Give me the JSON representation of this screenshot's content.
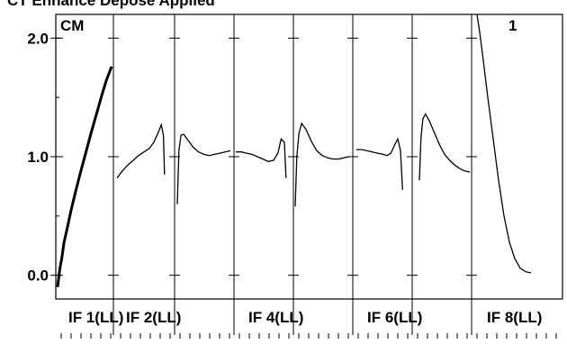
{
  "chart_data": {
    "type": "line",
    "caption": "CT Enhance Depose Applied",
    "corner_left": "CM",
    "corner_right": "1",
    "ylim": [
      -0.2,
      2.2
    ],
    "yticks": [
      "0.0",
      "1.0",
      "2.0"
    ],
    "ytick_values": [
      0.0,
      1.0,
      2.0
    ],
    "panels": [
      "IF 1(LL)",
      "IF 2(LL)",
      "IF 4(LL)",
      "IF 6(LL)",
      "IF 8(LL)"
    ],
    "line_color": "#000000",
    "series": [
      {
        "segment": 1,
        "x": [
          0.0,
          0.04,
          0.08,
          0.12,
          0.18,
          0.25,
          0.33,
          0.42,
          0.52,
          0.62,
          0.72,
          0.82,
          0.9,
          1.0
        ],
        "y": [
          -0.1,
          0.05,
          0.15,
          0.28,
          0.4,
          0.55,
          0.7,
          0.86,
          1.03,
          1.2,
          1.36,
          1.52,
          1.64,
          1.76
        ]
      },
      {
        "segment": 2,
        "x": [
          0.0,
          0.1,
          0.2,
          0.3,
          0.4,
          0.5,
          0.6,
          0.68,
          0.76,
          0.82,
          0.86,
          0.88
        ],
        "y": [
          0.82,
          0.88,
          0.93,
          0.97,
          1.01,
          1.04,
          1.07,
          1.12,
          1.2,
          1.27,
          1.18,
          0.85
        ]
      },
      {
        "segment": 3,
        "x": [
          0.0,
          0.03,
          0.07,
          0.12,
          0.2,
          0.3,
          0.4,
          0.5,
          0.6,
          0.7,
          0.8,
          0.9,
          1.0
        ],
        "y": [
          0.6,
          1.05,
          1.18,
          1.19,
          1.14,
          1.08,
          1.04,
          1.02,
          1.01,
          1.02,
          1.03,
          1.04,
          1.05
        ]
      },
      {
        "segment": 4,
        "x": [
          0.0,
          0.1,
          0.2,
          0.3,
          0.4,
          0.5,
          0.6,
          0.7,
          0.78,
          0.84,
          0.9,
          0.93
        ],
        "y": [
          1.04,
          1.04,
          1.03,
          1.02,
          1.0,
          0.98,
          0.96,
          0.97,
          1.03,
          1.15,
          1.12,
          0.82
        ]
      },
      {
        "segment": 5,
        "x": [
          0.0,
          0.03,
          0.07,
          0.12,
          0.2,
          0.3,
          0.4,
          0.5,
          0.6,
          0.7,
          0.8,
          0.9,
          1.0
        ],
        "y": [
          0.58,
          1.0,
          1.2,
          1.28,
          1.23,
          1.13,
          1.05,
          1.01,
          0.99,
          0.98,
          0.98,
          0.99,
          1.0
        ]
      },
      {
        "segment": 6,
        "x": [
          0.0,
          0.1,
          0.2,
          0.3,
          0.4,
          0.5,
          0.58,
          0.65,
          0.72,
          0.78,
          0.83,
          0.87
        ],
        "y": [
          1.06,
          1.06,
          1.05,
          1.04,
          1.03,
          1.02,
          1.01,
          1.03,
          1.1,
          1.15,
          1.05,
          0.72
        ]
      },
      {
        "segment": 7,
        "x": [
          0.0,
          0.03,
          0.07,
          0.12,
          0.2,
          0.3,
          0.4,
          0.5,
          0.6,
          0.7,
          0.8,
          0.9,
          1.0
        ],
        "y": [
          0.8,
          1.15,
          1.32,
          1.36,
          1.3,
          1.2,
          1.1,
          1.02,
          0.97,
          0.93,
          0.9,
          0.88,
          0.87
        ]
      },
      {
        "segment": 8,
        "x": [
          0.0,
          0.05,
          0.12,
          0.2,
          0.3,
          0.4,
          0.5,
          0.6,
          0.7,
          0.8,
          0.9,
          1.0
        ],
        "y": [
          2.2,
          2.05,
          1.8,
          1.5,
          1.15,
          0.8,
          0.5,
          0.28,
          0.14,
          0.06,
          0.03,
          0.02
        ]
      }
    ]
  }
}
